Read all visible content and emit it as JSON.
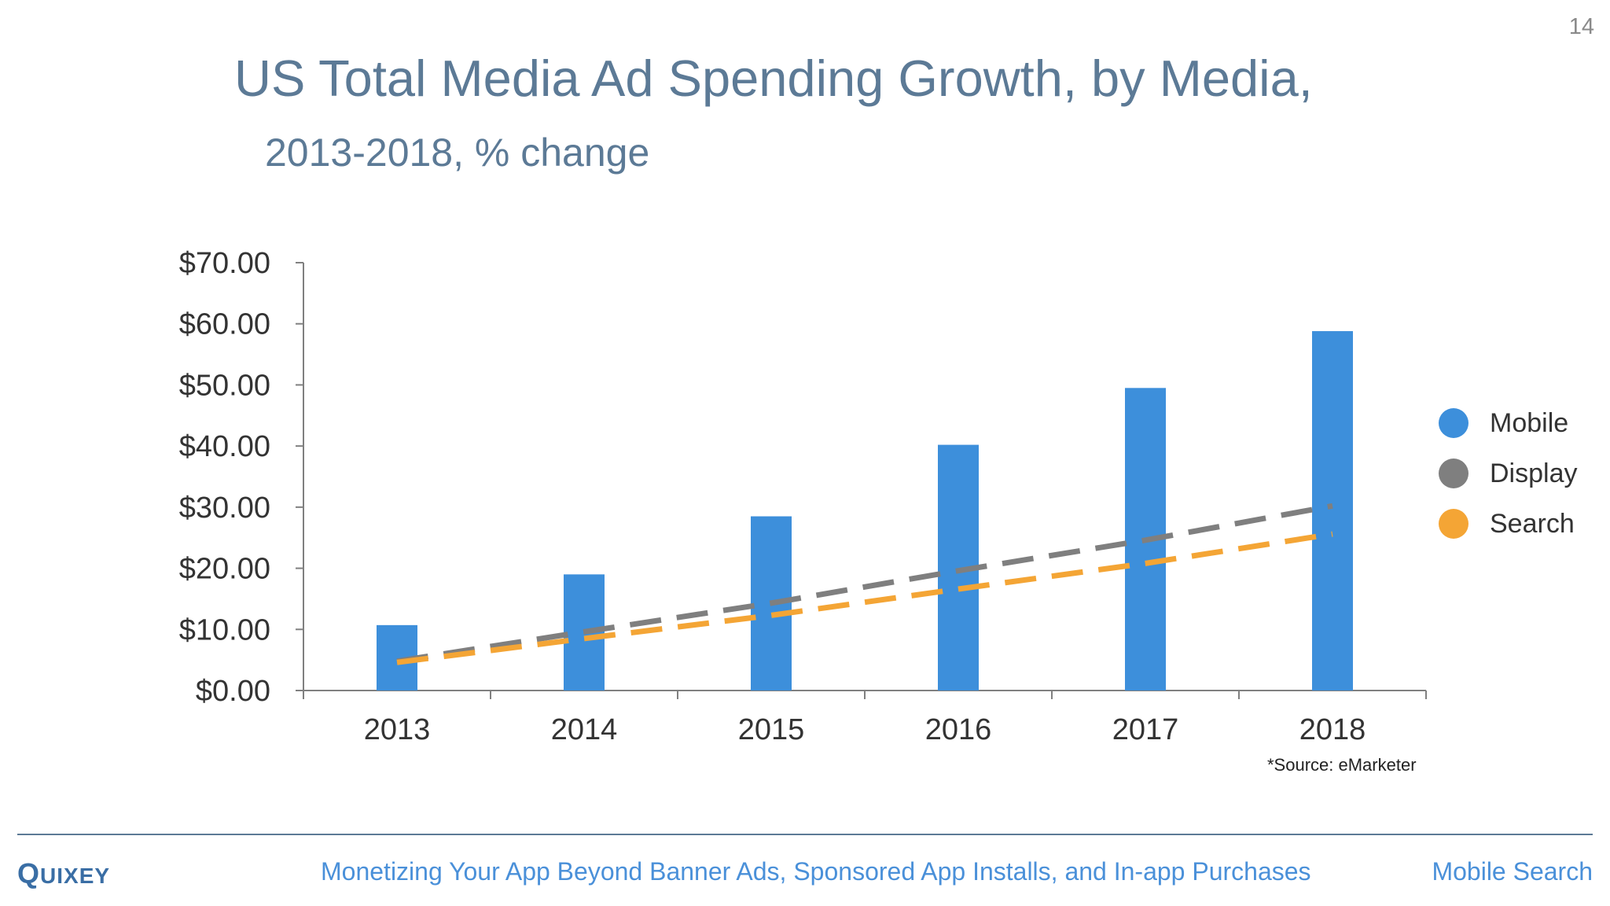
{
  "page_number": "14",
  "title": "US Total Media Ad Spending Growth, by Media,",
  "subtitle": "2013-2018, % change",
  "source_note": "*Source: eMarketer",
  "footer": {
    "logo_first": "Q",
    "logo_rest": "UIXEY",
    "text": "Monetizing Your App Beyond Banner Ads, Sponsored App Installs, and In-app Purchases",
    "right": "Mobile Search"
  },
  "colors": {
    "mobile": "#3d8fdb",
    "display": "#7f7f7f",
    "search": "#f4a535",
    "axis": "#808080",
    "title": "#5c7a96",
    "footer_text": "#4a90d9"
  },
  "chart_data": {
    "type": "bar",
    "categories": [
      "2013",
      "2014",
      "2015",
      "2016",
      "2017",
      "2018"
    ],
    "ylim": [
      0,
      70
    ],
    "yticks": [
      0,
      10,
      20,
      30,
      40,
      50,
      60,
      70
    ],
    "ytick_labels": [
      "$0.00",
      "$10.00",
      "$20.00",
      "$30.00",
      "$40.00",
      "$50.00",
      "$60.00",
      "$70.00"
    ],
    "grid": false,
    "legend_position": "right",
    "series": [
      {
        "name": "Mobile",
        "type": "bar",
        "color_key": "mobile",
        "values": [
          10.7,
          19.0,
          28.5,
          40.2,
          49.5,
          58.8
        ]
      },
      {
        "name": "Display",
        "type": "line",
        "style": "dashed",
        "color_key": "display",
        "values": [
          4.8,
          9.6,
          14.3,
          19.6,
          24.6,
          30.2
        ]
      },
      {
        "name": "Search",
        "type": "line",
        "style": "dashed",
        "color_key": "search",
        "values": [
          4.6,
          8.5,
          12.3,
          16.6,
          20.8,
          25.6
        ]
      }
    ]
  }
}
